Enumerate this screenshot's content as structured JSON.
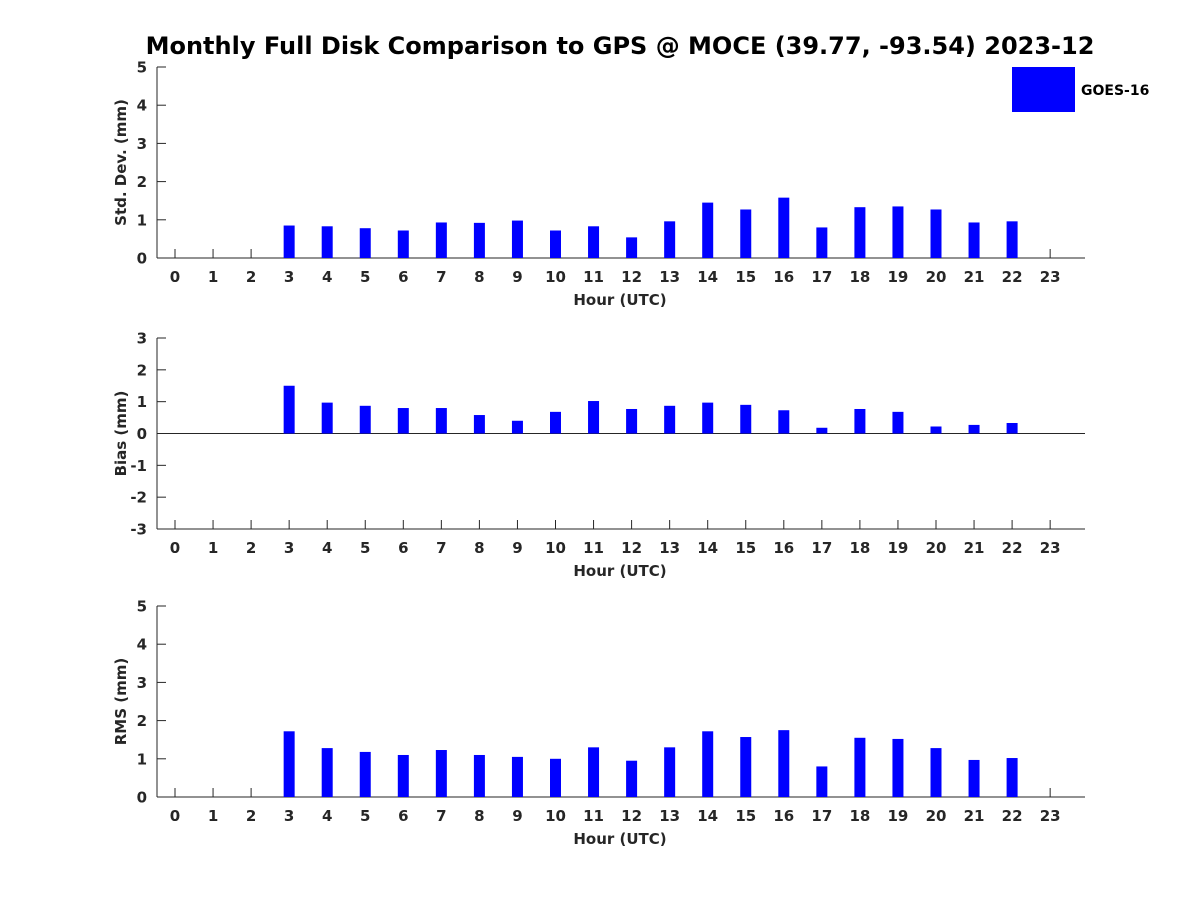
{
  "chart_data": {
    "type": "bar",
    "title": "Monthly Full Disk Comparison to GPS @ MOCE (39.77, -93.54) 2023-12",
    "legend": {
      "position": "top-right",
      "entries": [
        {
          "label": "GOES-16",
          "color": "#0000ff"
        }
      ]
    },
    "categories": [
      "0",
      "1",
      "2",
      "3",
      "4",
      "5",
      "6",
      "7",
      "8",
      "9",
      "10",
      "11",
      "12",
      "13",
      "14",
      "15",
      "16",
      "17",
      "18",
      "19",
      "20",
      "21",
      "22",
      "23"
    ],
    "panels": [
      {
        "name": "std-dev",
        "ylabel": "Std. Dev. (mm)",
        "xlabel": "Hour (UTC)",
        "ylim": [
          0,
          5
        ],
        "yticks": [
          "0",
          "1",
          "2",
          "3",
          "4",
          "5"
        ],
        "zero_line": false,
        "series": [
          {
            "name": "GOES-16",
            "color": "#0000ff",
            "values": [
              null,
              null,
              null,
              0.85,
              0.83,
              0.78,
              0.72,
              0.93,
              0.92,
              0.98,
              0.72,
              0.83,
              0.54,
              0.96,
              1.45,
              1.27,
              1.58,
              0.8,
              1.33,
              1.35,
              1.27,
              0.93,
              0.96,
              null
            ]
          }
        ]
      },
      {
        "name": "bias",
        "ylabel": "Bias (mm)",
        "xlabel": "Hour (UTC)",
        "ylim": [
          -3,
          3
        ],
        "yticks": [
          "-3",
          "-2",
          "-1",
          "0",
          "1",
          "2",
          "3"
        ],
        "zero_line": true,
        "series": [
          {
            "name": "GOES-16",
            "color": "#0000ff",
            "values": [
              null,
              null,
              null,
              1.5,
              0.97,
              0.87,
              0.8,
              0.8,
              0.58,
              0.4,
              0.68,
              1.02,
              0.77,
              0.87,
              0.97,
              0.9,
              0.73,
              0.18,
              0.77,
              0.68,
              0.22,
              0.27,
              0.33,
              null
            ]
          }
        ]
      },
      {
        "name": "rms",
        "ylabel": "RMS (mm)",
        "xlabel": "Hour (UTC)",
        "ylim": [
          0,
          5
        ],
        "yticks": [
          "0",
          "1",
          "2",
          "3",
          "4",
          "5"
        ],
        "zero_line": false,
        "series": [
          {
            "name": "GOES-16",
            "color": "#0000ff",
            "values": [
              null,
              null,
              null,
              1.72,
              1.28,
              1.18,
              1.1,
              1.23,
              1.1,
              1.05,
              1.0,
              1.3,
              0.95,
              1.3,
              1.72,
              1.57,
              1.75,
              0.8,
              1.55,
              1.52,
              1.28,
              0.97,
              1.02,
              null
            ]
          }
        ]
      }
    ]
  }
}
